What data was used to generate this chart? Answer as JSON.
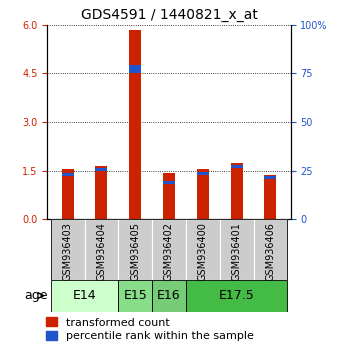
{
  "title": "GDS4591 / 1440821_x_at",
  "samples": [
    "GSM936403",
    "GSM936404",
    "GSM936405",
    "GSM936402",
    "GSM936400",
    "GSM936401",
    "GSM936406"
  ],
  "transformed_counts": [
    1.55,
    1.65,
    5.85,
    1.42,
    1.57,
    1.75,
    1.38
  ],
  "percentile_ranks_left": [
    1.38,
    1.55,
    4.65,
    1.15,
    1.42,
    1.62,
    1.3
  ],
  "percentile_blue_heights": [
    0.09,
    0.09,
    0.25,
    0.09,
    0.09,
    0.09,
    0.09
  ],
  "age_groups": [
    {
      "label": "E14",
      "start": 0,
      "end": 2,
      "color": "#ccffcc"
    },
    {
      "label": "E15",
      "start": 2,
      "end": 3,
      "color": "#88dd88"
    },
    {
      "label": "E16",
      "start": 3,
      "end": 4,
      "color": "#77cc77"
    },
    {
      "label": "E17.5",
      "start": 4,
      "end": 7,
      "color": "#44bb44"
    }
  ],
  "ylim_left": [
    0,
    6
  ],
  "ylim_right": [
    0,
    100
  ],
  "yticks_left": [
    0,
    1.5,
    3,
    4.5,
    6
  ],
  "yticks_right": [
    0,
    25,
    50,
    75,
    100
  ],
  "bar_color_red": "#cc2200",
  "bar_color_blue": "#2255cc",
  "sample_bg_color": "#cccccc",
  "bar_width": 0.35,
  "legend_red_label": "transformed count",
  "legend_blue_label": "percentile rank within the sample",
  "title_fontsize": 10,
  "tick_fontsize": 7,
  "legend_fontsize": 8,
  "age_fontsize": 9,
  "sample_fontsize": 7
}
